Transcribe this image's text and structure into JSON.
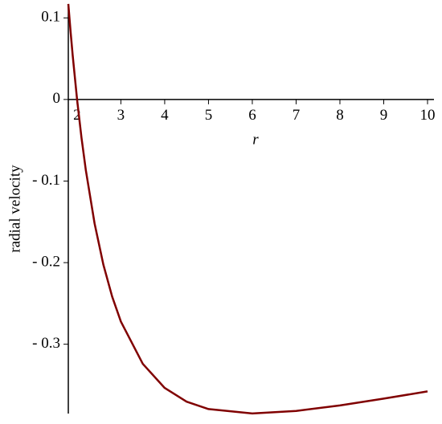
{
  "chart_data": {
    "type": "line",
    "x_label": "r",
    "y_label": "radial velocity",
    "x": [
      1.8,
      1.85,
      1.9,
      2,
      2.1,
      2.2,
      2.4,
      2.6,
      2.8,
      3,
      3.5,
      4,
      4.5,
      5,
      6,
      7,
      8,
      9,
      10
    ],
    "series": [
      {
        "color": "#800000",
        "values": [
          0.1171,
          0.0843,
          0.054,
          0,
          -0.0465,
          -0.0867,
          -0.1521,
          -0.2024,
          -0.2415,
          -0.2722,
          -0.324,
          -0.3536,
          -0.3704,
          -0.3795,
          -0.3849,
          -0.3818,
          -0.375,
          -0.3667,
          -0.3578
        ]
      }
    ],
    "xlim": [
      1.8,
      10
    ],
    "ylim": [
      -0.385,
      0.117
    ],
    "xticks": [
      2,
      3,
      4,
      5,
      6,
      7,
      8,
      9,
      10
    ],
    "yticks": [
      {
        "value": -0.3,
        "label": "- 0.3"
      },
      {
        "value": -0.2,
        "label": "- 0.2"
      },
      {
        "value": -0.1,
        "label": "- 0.1"
      },
      0,
      0.1
    ]
  }
}
